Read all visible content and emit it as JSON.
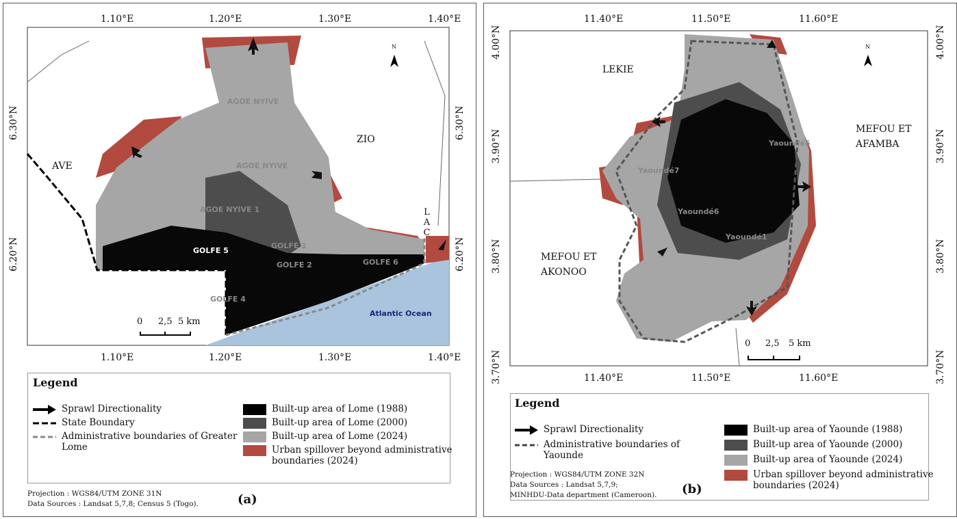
{
  "panels": [
    {
      "label": "(a)",
      "x_ticks": [
        "1.10°E",
        "1.20°E",
        "1.30°E",
        "1.40°E"
      ],
      "y_ticks": [
        "6.30°N",
        "6.20°N"
      ],
      "places": [
        "AVE",
        "ZIO",
        "LAC",
        "GOLFE 5",
        "GOLFE 1",
        "GOLFE 2",
        "GOLFE 6",
        "GOLFE 4",
        "AGOE NYIVE 1",
        "AGOE NYIVE",
        "AGOE NYIVE",
        "Atlantic Ocean"
      ],
      "north": "N",
      "scale": [
        "0",
        "2,5",
        "5 km"
      ],
      "legend": {
        "title": "Legend",
        "items": [
          "Sprawl Directionality",
          "State Boundary",
          "Administrative boundaries of Greater Lome",
          "Built-up area of Lome (1988)",
          "Built-up area of Lome (2000)",
          "Built-up area of Lome (2024)",
          "Urban spillover beyond administrative boundaries (2024)"
        ]
      },
      "notes": [
        "Projection : WGS84/UTM ZONE 31N",
        "Data Sources : Landsat 5,7,8; Census 5 (Togo)."
      ]
    },
    {
      "label": "(b)",
      "x_ticks": [
        "11.40°E",
        "11.50°E",
        "11.60°E"
      ],
      "y_ticks": [
        "4.00°N",
        "3.90°N",
        "3.80°N",
        "3.70°N"
      ],
      "places": [
        "LEKIE",
        "MEFOU ET AFAMBA",
        "MEFOU ET AKONOO",
        "Yaoundé7",
        "Yaoundé6",
        "Yaoundé5",
        "Yaoundé1"
      ],
      "north": "N",
      "scale": [
        "0",
        "2,5",
        "5 km"
      ],
      "legend": {
        "title": "Legend",
        "items": [
          "Sprawl Directionality",
          "Administrative boundaries of Yaounde",
          "Built-up area of Yaounde (1988)",
          "Built-up area of Yaounde (2000)",
          "Built-up area of Yaounde (2024)",
          "Urban spillover beyond administrative boundaries (2024)"
        ]
      },
      "notes": [
        "Projection : WGS84/UTM ZONE 32N",
        "Data Sources : Landsat 5,7,9;",
        "MINHDU-Data department (Cameroon)."
      ]
    }
  ]
}
